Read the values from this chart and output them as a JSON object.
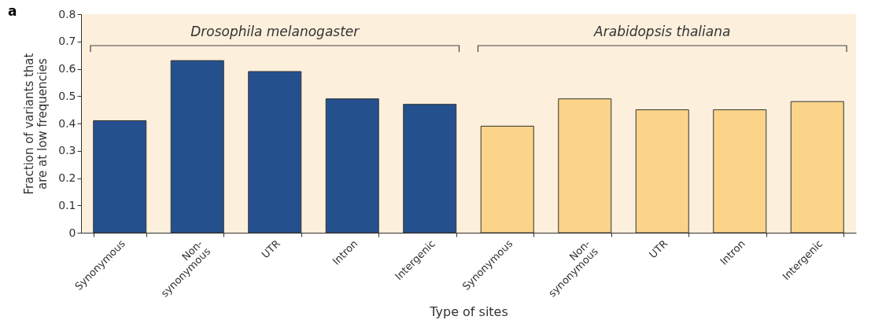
{
  "chart_data": {
    "type": "bar",
    "xlabel": "Type of sites",
    "ylabel": "Fraction of variants that are at low frequencies",
    "categories": [
      "Synonymous",
      "Non-synonymous",
      "UTR",
      "Intron",
      "Intergenic",
      "Synonymous",
      "Non-synonymous",
      "UTR",
      "Intron",
      "Intergenic"
    ],
    "values": [
      0.41,
      0.63,
      0.59,
      0.49,
      0.47,
      0.39,
      0.49,
      0.45,
      0.45,
      0.48
    ],
    "colors": [
      "#24508e",
      "#24508e",
      "#24508e",
      "#24508e",
      "#24508e",
      "#fbd48a",
      "#fbd48a",
      "#fbd48a",
      "#fbd48a",
      "#fbd48a"
    ],
    "ylim": [
      0,
      0.8
    ],
    "yticks": [
      0,
      0.1,
      0.2,
      0.3,
      0.4,
      0.5,
      0.6,
      0.7,
      0.8
    ],
    "grid": false,
    "annotations": [
      "a",
      "Drosophila melanogaster",
      "Arabidopsis thaliana"
    ]
  }
}
